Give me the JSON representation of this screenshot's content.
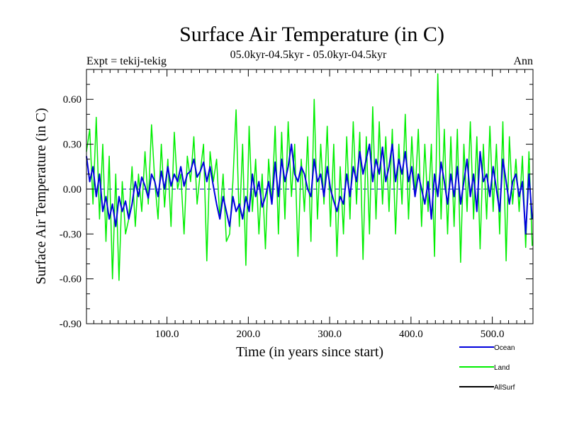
{
  "chart_data": {
    "type": "line",
    "title": "Surface Air Temperature (in C)",
    "subtitle": "05.0kyr-04.5kyr - 05.0kyr-04.5kyr",
    "left_label": "Expt = tekij-tekig",
    "right_label": "Ann",
    "xlabel": "Time (in years since start)",
    "ylabel": "Surface Air Temperature (in C)",
    "xlim": [
      1,
      550
    ],
    "ylim": [
      -0.9,
      0.8
    ],
    "x_ticks": [
      100,
      200,
      300,
      400,
      500
    ],
    "x_tick_labels": [
      "100.0",
      "200.0",
      "300.0",
      "400.0",
      "500.0"
    ],
    "y_ticks": [
      -0.9,
      -0.6,
      -0.3,
      0.0,
      0.3,
      0.6
    ],
    "y_tick_labels": [
      "-0.90",
      "-0.60",
      "-0.30",
      "0.00",
      "0.30",
      "0.60"
    ],
    "zero_line": true,
    "legend_position": "bottom-right",
    "series": [
      {
        "name": "Land",
        "color": "#00ee00",
        "x": [
          1,
          5,
          9,
          13,
          17,
          21,
          25,
          29,
          33,
          37,
          41,
          45,
          49,
          53,
          57,
          61,
          65,
          69,
          73,
          77,
          81,
          85,
          89,
          93,
          97,
          101,
          105,
          109,
          113,
          117,
          121,
          125,
          129,
          133,
          137,
          141,
          145,
          149,
          153,
          157,
          161,
          165,
          169,
          173,
          177,
          181,
          185,
          189,
          193,
          197,
          201,
          205,
          209,
          213,
          217,
          221,
          225,
          229,
          233,
          237,
          241,
          245,
          249,
          253,
          257,
          261,
          265,
          269,
          273,
          277,
          281,
          285,
          289,
          293,
          297,
          301,
          305,
          309,
          313,
          317,
          321,
          325,
          329,
          333,
          337,
          341,
          345,
          349,
          353,
          357,
          361,
          365,
          369,
          373,
          377,
          381,
          385,
          389,
          393,
          397,
          401,
          405,
          409,
          413,
          417,
          421,
          425,
          429,
          433,
          437,
          441,
          445,
          449,
          453,
          457,
          461,
          465,
          469,
          473,
          477,
          481,
          485,
          489,
          493,
          497,
          501,
          505,
          509,
          513,
          517,
          521,
          525,
          529,
          533,
          537,
          541,
          545,
          549
        ],
        "values": [
          0.25,
          0.4,
          -0.1,
          0.48,
          -0.2,
          0.3,
          -0.35,
          0.22,
          -0.6,
          0.1,
          -0.61,
          0.05,
          -0.3,
          -0.2,
          0.15,
          -0.25,
          0.1,
          -0.15,
          0.25,
          -0.1,
          0.43,
          0.05,
          -0.2,
          0.3,
          -0.12,
          0.2,
          -0.25,
          0.38,
          0.0,
          0.1,
          -0.3,
          0.22,
          0.05,
          0.35,
          -0.1,
          0.12,
          0.3,
          -0.48,
          0.25,
          0.05,
          0.2,
          -0.2,
          0.1,
          -0.35,
          -0.3,
          0.05,
          0.53,
          -0.25,
          0.3,
          -0.51,
          0.42,
          -0.15,
          0.2,
          -0.3,
          0.1,
          -0.4,
          0.2,
          -0.1,
          0.42,
          -0.3,
          0.38,
          -0.2,
          0.45,
          -0.05,
          0.3,
          -0.45,
          0.2,
          -0.15,
          0.35,
          -0.35,
          0.6,
          -0.2,
          0.3,
          -0.1,
          0.42,
          -0.25,
          0.3,
          -0.45,
          0.15,
          -0.3,
          0.35,
          -0.2,
          0.45,
          -0.1,
          0.38,
          -0.47,
          0.35,
          -0.3,
          0.55,
          -0.2,
          0.45,
          -0.1,
          0.35,
          -0.15,
          0.4,
          -0.3,
          0.3,
          -0.1,
          0.5,
          -0.2,
          0.35,
          -0.05,
          0.4,
          -0.25,
          0.3,
          -0.15,
          0.3,
          -0.45,
          0.77,
          -0.2,
          0.4,
          -0.3,
          0.35,
          -0.25,
          0.4,
          -0.49,
          0.3,
          -0.15,
          0.45,
          -0.2,
          0.35,
          -0.4,
          0.3,
          -0.2,
          0.42,
          -0.15,
          0.3,
          -0.3,
          0.45,
          -0.48,
          0.35,
          -0.1,
          0.2,
          -0.15,
          0.22,
          -0.39,
          0.25,
          -0.38
        ]
      },
      {
        "name": "Ocean",
        "color": "#0000dd",
        "x": [
          1,
          5,
          9,
          13,
          17,
          21,
          25,
          29,
          33,
          37,
          41,
          45,
          49,
          53,
          57,
          61,
          65,
          69,
          73,
          77,
          81,
          85,
          89,
          93,
          97,
          101,
          105,
          109,
          113,
          117,
          121,
          125,
          129,
          133,
          137,
          141,
          145,
          149,
          153,
          157,
          161,
          165,
          169,
          173,
          177,
          181,
          185,
          189,
          193,
          197,
          201,
          205,
          209,
          213,
          217,
          221,
          225,
          229,
          233,
          237,
          241,
          245,
          249,
          253,
          257,
          261,
          265,
          269,
          273,
          277,
          281,
          285,
          289,
          293,
          297,
          301,
          305,
          309,
          313,
          317,
          321,
          325,
          329,
          333,
          337,
          341,
          345,
          349,
          353,
          357,
          361,
          365,
          369,
          373,
          377,
          381,
          385,
          389,
          393,
          397,
          401,
          405,
          409,
          413,
          417,
          421,
          425,
          429,
          433,
          437,
          441,
          445,
          449,
          453,
          457,
          461,
          465,
          469,
          473,
          477,
          481,
          485,
          489,
          493,
          497,
          501,
          505,
          509,
          513,
          517,
          521,
          525,
          529,
          533,
          537,
          541,
          545,
          549
        ],
        "values": [
          0.22,
          0.05,
          0.15,
          -0.05,
          0.1,
          -0.15,
          -0.05,
          -0.2,
          -0.1,
          -0.25,
          -0.05,
          -0.15,
          -0.08,
          -0.2,
          -0.1,
          0.05,
          -0.05,
          0.08,
          0.02,
          -0.06,
          0.1,
          0.05,
          -0.05,
          0.12,
          0.0,
          0.15,
          0.02,
          0.1,
          0.05,
          0.15,
          0.02,
          0.1,
          0.12,
          0.2,
          0.08,
          0.12,
          0.18,
          0.05,
          0.15,
          0.02,
          -0.1,
          -0.2,
          -0.05,
          -0.15,
          -0.25,
          -0.05,
          -0.15,
          -0.1,
          -0.2,
          -0.05,
          -0.15,
          0.1,
          -0.05,
          0.05,
          -0.12,
          -0.05,
          0.05,
          -0.1,
          0.18,
          -0.05,
          0.2,
          0.05,
          0.15,
          0.3,
          0.1,
          0.05,
          0.15,
          0.1,
          0.0,
          -0.05,
          0.2,
          0.05,
          0.1,
          -0.05,
          0.15,
          0.0,
          -0.08,
          -0.15,
          -0.05,
          -0.1,
          0.1,
          -0.05,
          0.15,
          0.05,
          0.25,
          0.1,
          0.2,
          0.3,
          0.05,
          0.2,
          0.1,
          0.28,
          0.05,
          0.15,
          0.3,
          0.05,
          0.2,
          0.1,
          0.25,
          0.05,
          0.15,
          -0.05,
          0.1,
          0.0,
          -0.1,
          0.05,
          -0.2,
          0.1,
          -0.05,
          0.18,
          0.05,
          -0.1,
          0.1,
          -0.05,
          0.15,
          -0.1,
          0.05,
          0.2,
          -0.05,
          0.1,
          -0.15,
          0.25,
          0.05,
          0.1,
          -0.05,
          0.15,
          0.0,
          -0.15,
          0.2,
          0.05,
          -0.1,
          0.05,
          0.1,
          -0.05,
          0.05,
          -0.3,
          0.1,
          -0.2
        ]
      },
      {
        "name": "AllSurf",
        "color": "#000000",
        "x": [],
        "values": []
      }
    ]
  }
}
